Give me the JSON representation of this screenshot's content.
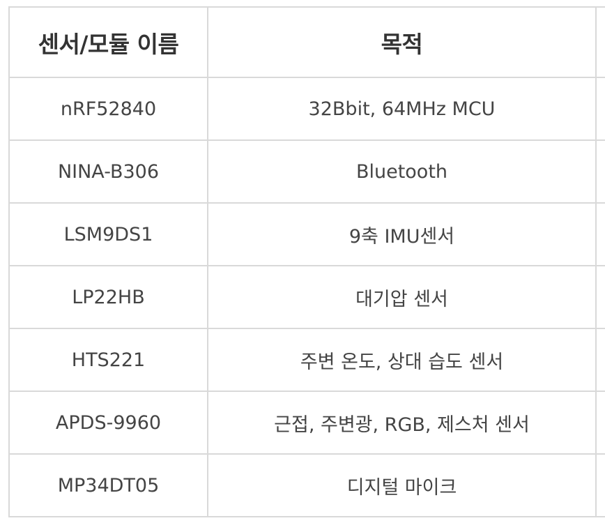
{
  "table": {
    "headers": [
      "센서/모듈 이름",
      "목적"
    ],
    "rows": [
      [
        "nRF52840",
        "32Bbit, 64MHz MCU"
      ],
      [
        "NINA-B306",
        "Bluetooth"
      ],
      [
        "LSM9DS1",
        "9축 IMU센서"
      ],
      [
        "LP22HB",
        "대기압 센서"
      ],
      [
        "HTS221",
        "주변 온도, 상대 습도 센서"
      ],
      [
        "APDS-9960",
        "근접, 주변광, RGB, 제스처 센서"
      ],
      [
        "MP34DT05",
        "디지털 마이크"
      ]
    ]
  },
  "colors": {
    "border": "#d9d9d9",
    "text": "#444444",
    "header_text": "#333333",
    "background": "#ffffff"
  }
}
